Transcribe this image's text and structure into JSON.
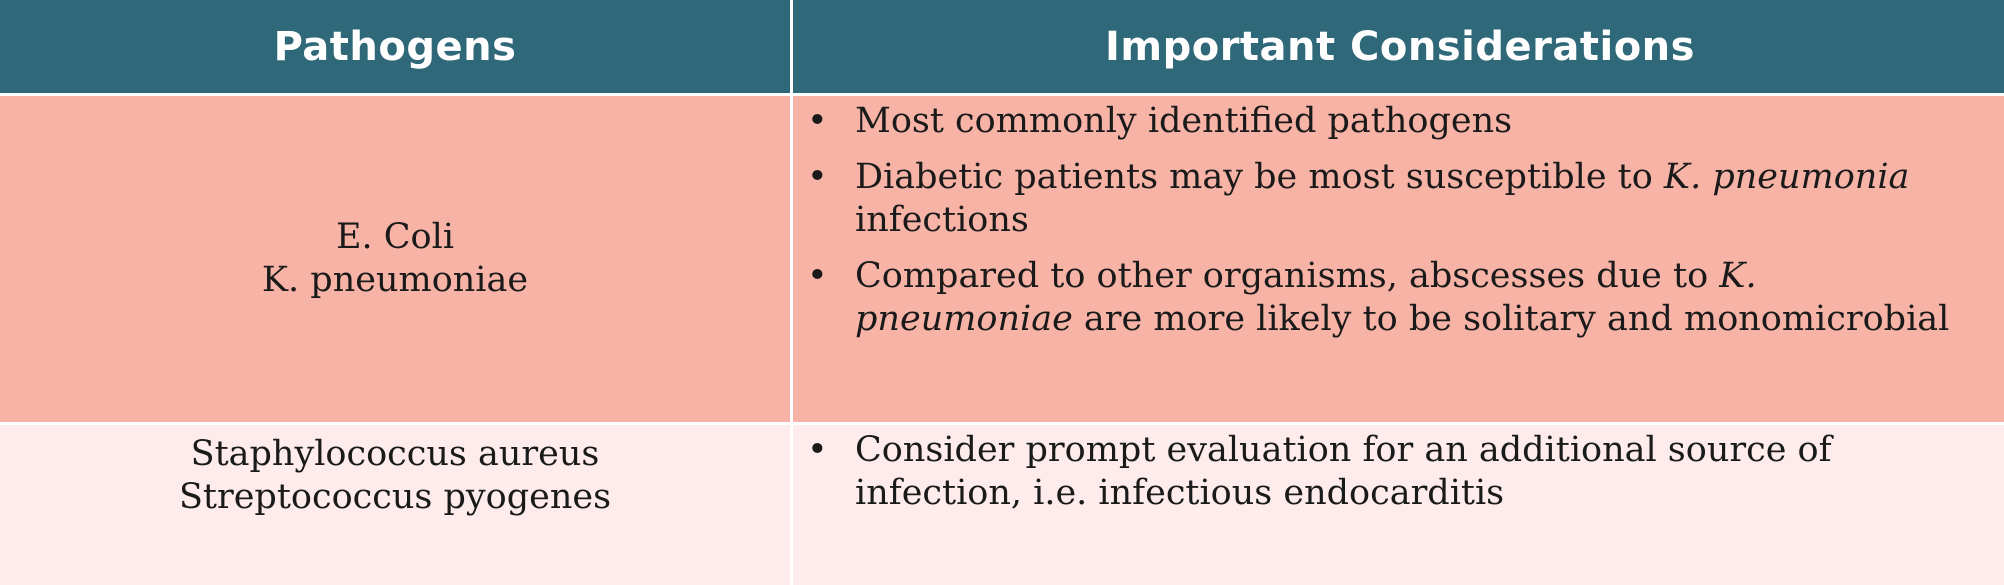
{
  "headers": {
    "pathogens": "Pathogens",
    "considerations": "Important Considerations"
  },
  "rows": [
    {
      "pathogens": [
        "E. Coli",
        "K. pneumoniae"
      ],
      "considerations": [
        {
          "text": "Most commonly identified pathogens"
        },
        {
          "pre": "Diabetic patients may be most susceptible to ",
          "italic": "K. pneumonia",
          "post": " infections"
        },
        {
          "pre": "Compared to other organisms, abscesses due to ",
          "italic": "K. pneumoniae",
          "post": " are more likely to be solitary and monomicrobial"
        }
      ],
      "background": "#f7b3a6"
    },
    {
      "pathogens": [
        "Staphylococcus aureus",
        "Streptococcus pyogenes"
      ],
      "considerations": [
        {
          "text": "Consider prompt evaluation for an additional source of infection, i.e. infectious endocarditis"
        }
      ],
      "background": "#fdeceb"
    }
  ],
  "colors": {
    "header_bg": "#2f6878",
    "header_text": "#ffffff"
  }
}
